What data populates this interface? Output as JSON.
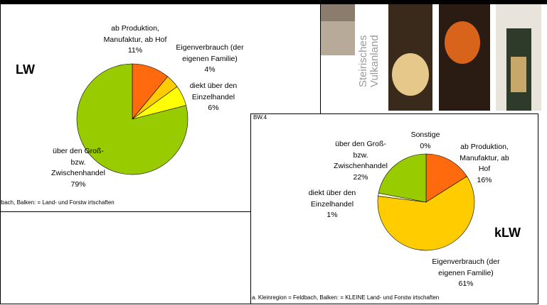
{
  "chart_data": [
    {
      "type": "pie",
      "title": "LW",
      "categories": [
        "ab Produktion,\nManufaktur, ab Hof",
        "Eigenverbrauch (der\neigenen Familie)",
        "diekt über den\nEinzelhandel",
        "über den Groß-\nbzw.\nZwischenhandel"
      ],
      "values": [
        11,
        4,
        6,
        79
      ],
      "value_labels": [
        "11%",
        "4%",
        "6%",
        "79%"
      ],
      "colors": [
        "#ff6a0e",
        "#ffcc00",
        "#ffff00",
        "#99cc00"
      ],
      "footnote": "lbach, Balken: = Land- und Forstw irtschaften"
    },
    {
      "type": "pie",
      "title": "kLW",
      "panel_label": "BW.4",
      "categories": [
        "Sonstige",
        "ab Produktion,\nManufaktur, ab Hof",
        "Eigenverbrauch (der\neigenen Familie)",
        "diekt über den\nEinzelhandel",
        "über den Groß-\nbzw.\nZwischenhandel"
      ],
      "values": [
        0,
        16,
        61,
        1,
        22
      ],
      "value_labels": [
        "0%",
        "16%",
        "61%",
        "1%",
        "22%"
      ],
      "colors": [
        "#ffffff",
        "#ff6a0e",
        "#ffcc00",
        "#ffffcc",
        "#99cc00"
      ],
      "footnote": "a. Kleinregion = Feldbach, Balken: = KLEINE Land- und Forstw irtschaften"
    }
  ],
  "brand": [
    "Steirisches",
    "Vulkanland"
  ]
}
